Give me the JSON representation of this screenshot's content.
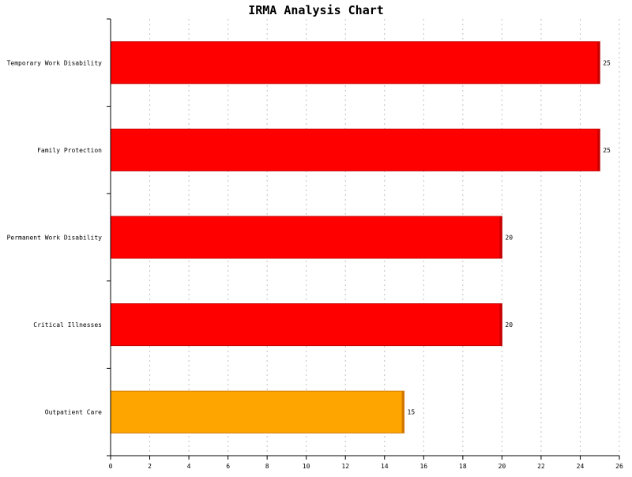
{
  "chart_data": {
    "type": "bar",
    "orientation": "horizontal",
    "title": "IRMA Analysis Chart",
    "xlabel": "",
    "ylabel": "",
    "categories": [
      "Temporary Work Disability",
      "Family Protection",
      "Permanent Work Disability",
      "Critical Illnesses",
      "Outpatient Care"
    ],
    "values": [
      25,
      25,
      20,
      20,
      15
    ],
    "bar_colors": [
      "#ff0000",
      "#ff0000",
      "#ff0000",
      "#ff0000",
      "#ffa500"
    ],
    "bar_edge_colors": [
      "#c80000",
      "#c80000",
      "#c80000",
      "#c80000",
      "#d27800"
    ],
    "xlim": [
      0,
      26
    ],
    "xticks": [
      0,
      2,
      4,
      6,
      8,
      10,
      12,
      14,
      16,
      18,
      20,
      22,
      24,
      26
    ],
    "grid": "vertical dashed",
    "value_labels": true
  }
}
